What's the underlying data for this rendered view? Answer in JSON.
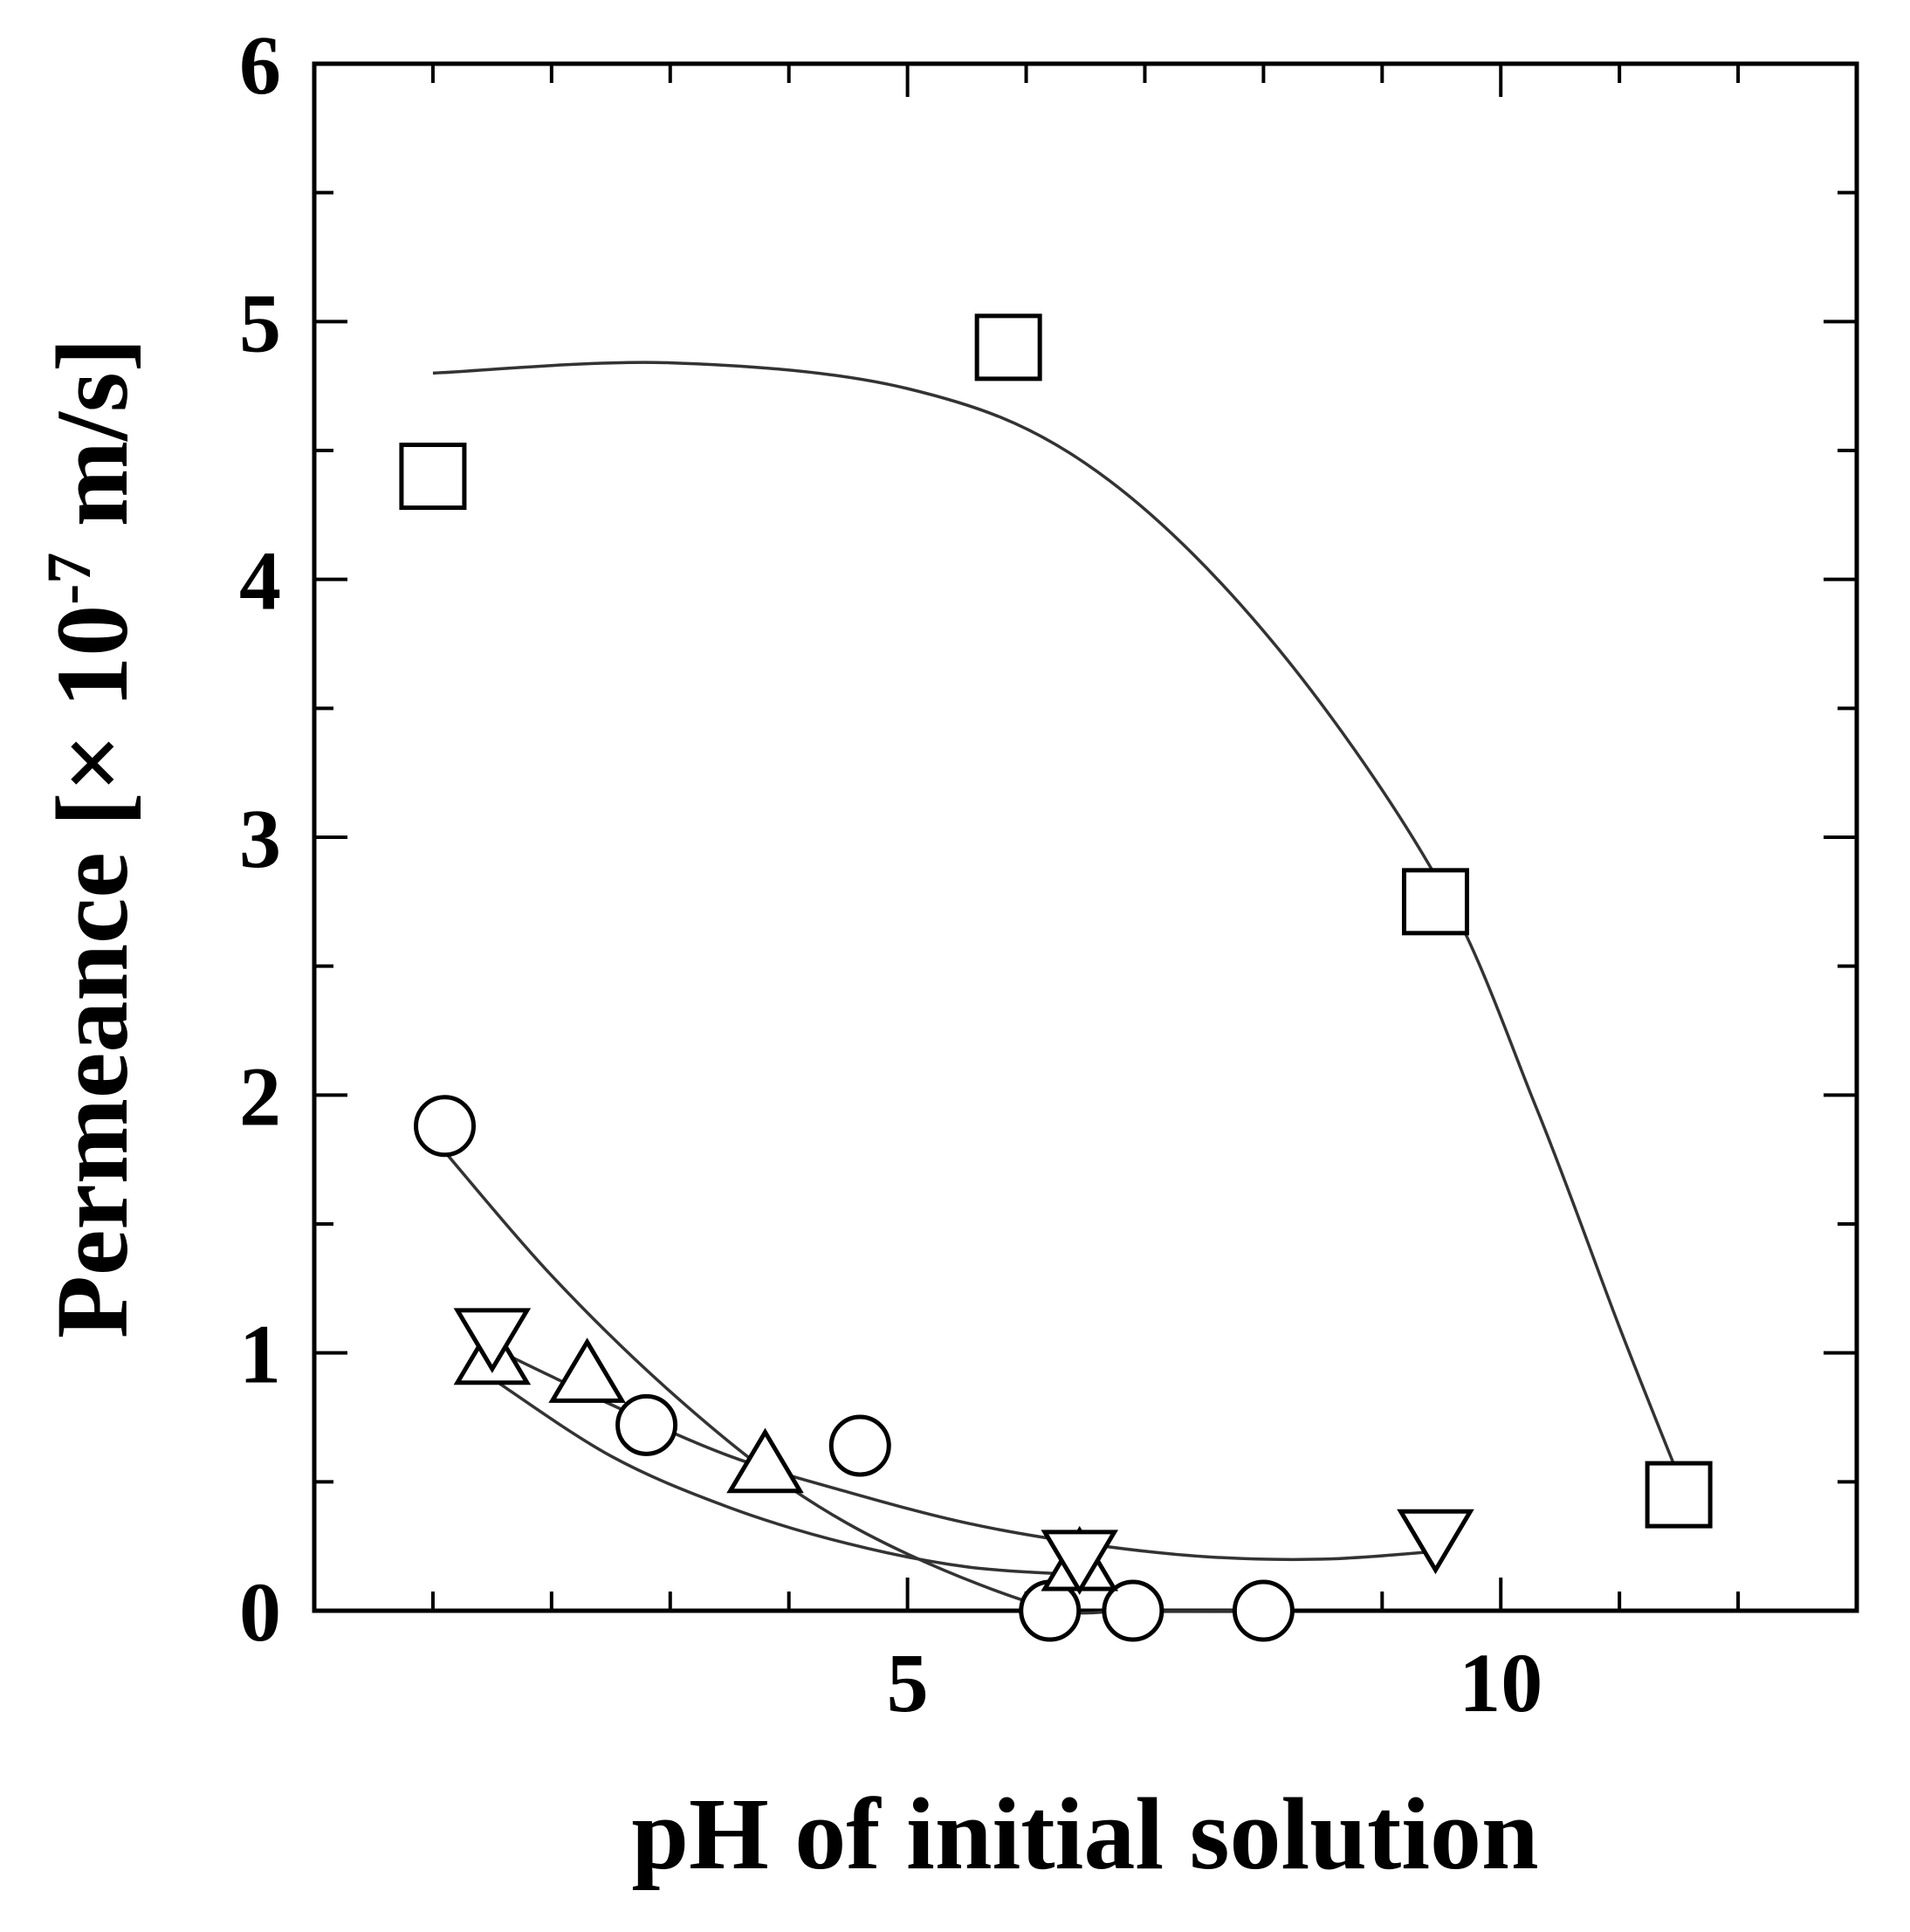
{
  "chart_data": {
    "type": "scatter",
    "title": "",
    "xlabel": "pH of initial solution",
    "ylabel_main": "Permeance [× 10",
    "ylabel_exp": "-7",
    "ylabel_unit": " m/s]",
    "xlim": [
      0,
      13
    ],
    "ylim": [
      0,
      6
    ],
    "xticks_labeled": [
      5,
      10
    ],
    "xticks_minor": [
      1,
      2,
      3,
      4,
      6,
      7,
      8,
      9,
      11,
      12
    ],
    "yticks_labeled": [
      0,
      1,
      2,
      3,
      4,
      5,
      6
    ],
    "yticks_minor": [
      0.5,
      1.5,
      2.5,
      3.5,
      4.5,
      5.5
    ],
    "colors": {
      "markers": "#000000",
      "lines": "#333333"
    },
    "series": [
      {
        "marker": "square",
        "points": [
          [
            1.0,
            4.4
          ],
          [
            5.85,
            4.9
          ],
          [
            9.45,
            2.75
          ],
          [
            11.5,
            0.45
          ]
        ],
        "fit": [
          [
            1.0,
            4.8
          ],
          [
            3.0,
            4.84
          ],
          [
            5.0,
            4.74
          ],
          [
            6.5,
            4.45
          ],
          [
            8.0,
            3.8
          ],
          [
            9.45,
            2.85
          ],
          [
            10.3,
            1.95
          ],
          [
            11.0,
            1.1
          ],
          [
            11.5,
            0.52
          ]
        ]
      },
      {
        "marker": "circle",
        "points": [
          [
            1.1,
            1.88
          ],
          [
            2.8,
            0.72
          ],
          [
            4.6,
            0.64
          ],
          [
            6.2,
            0.0
          ],
          [
            6.9,
            0.0
          ],
          [
            8.0,
            0.0
          ]
        ],
        "fit": [
          [
            1.1,
            1.78
          ],
          [
            2.0,
            1.3
          ],
          [
            3.0,
            0.85
          ],
          [
            4.0,
            0.48
          ],
          [
            5.0,
            0.22
          ],
          [
            6.2,
            0.01
          ],
          [
            6.9,
            0.0
          ],
          [
            8.0,
            0.0
          ]
        ]
      },
      {
        "marker": "triangle-up",
        "points": [
          [
            1.5,
            0.97
          ],
          [
            2.3,
            0.9
          ],
          [
            3.8,
            0.55
          ],
          [
            6.45,
            0.17
          ]
        ],
        "fit": [
          [
            1.5,
            0.9
          ],
          [
            2.5,
            0.6
          ],
          [
            3.5,
            0.4
          ],
          [
            4.5,
            0.26
          ],
          [
            5.5,
            0.17
          ],
          [
            6.45,
            0.14
          ]
        ]
      },
      {
        "marker": "triangle-down",
        "points": [
          [
            1.5,
            1.08
          ],
          [
            6.45,
            0.22
          ],
          [
            9.45,
            0.3
          ]
        ],
        "fit": [
          [
            1.5,
            1.02
          ],
          [
            2.5,
            0.8
          ],
          [
            3.5,
            0.6
          ],
          [
            4.5,
            0.46
          ],
          [
            5.5,
            0.34
          ],
          [
            6.5,
            0.26
          ],
          [
            7.5,
            0.21
          ],
          [
            8.5,
            0.2
          ],
          [
            9.45,
            0.23
          ]
        ]
      }
    ]
  }
}
